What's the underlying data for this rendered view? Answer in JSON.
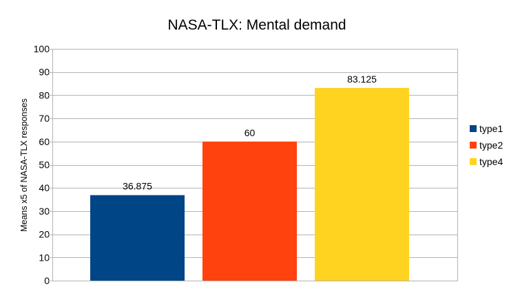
{
  "chart_data": {
    "type": "bar",
    "title": "NASA-TLX: Mental demand",
    "xlabel": "",
    "ylabel": "Means x5 of NASA-TLX responses",
    "ylim": [
      0,
      100
    ],
    "yticks": [
      0,
      10,
      20,
      30,
      40,
      50,
      60,
      70,
      80,
      90,
      100
    ],
    "grid": true,
    "legend": "right",
    "series": [
      {
        "name": "type1",
        "value": 36.875,
        "label": "36.875",
        "color": "#004586"
      },
      {
        "name": "type2",
        "value": 60,
        "label": "60",
        "color": "#ff420e"
      },
      {
        "name": "type4",
        "value": 83.125,
        "label": "83.125",
        "color": "#ffd320"
      }
    ]
  }
}
